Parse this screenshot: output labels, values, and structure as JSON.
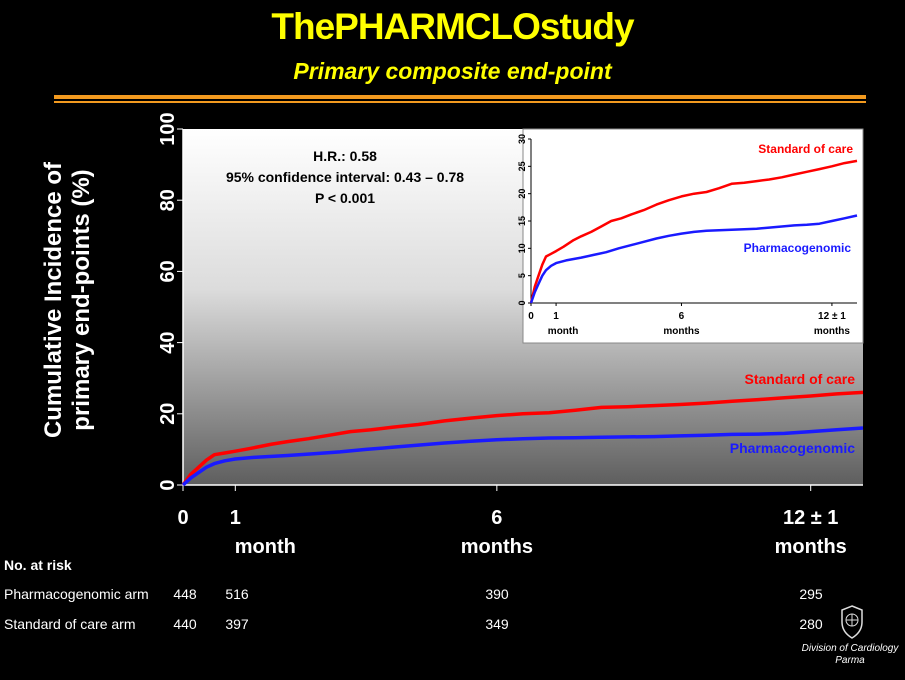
{
  "header": {
    "title": "ThePHARMCLOstudy",
    "subtitle": "Primary composite end-point"
  },
  "colors": {
    "title": "#ffff00",
    "rule": "#f29a1f",
    "standard_of_care": "#ff0000",
    "pharmacogenomic": "#1a1aff"
  },
  "chart_data": [
    {
      "type": "line",
      "ylabel": "Cumulative Incidence of primary end-points (%)",
      "ylim": [
        0,
        100
      ],
      "yticks": [
        "0",
        "20",
        "40",
        "60",
        "80",
        "100"
      ],
      "xticks": [
        {
          "value": "0",
          "unit": ""
        },
        {
          "value": "1",
          "unit": "month"
        },
        {
          "value": "6",
          "unit": "months"
        },
        {
          "value": "12 ± 1",
          "unit": "months"
        }
      ],
      "xlim": [
        0,
        13
      ],
      "annotation": [
        "H.R.: 0.58",
        "95% confidence interval: 0.43 – 0.78",
        "P < 0.001"
      ],
      "grid": false,
      "series": [
        {
          "name": "Standard of care",
          "color": "#ff0000",
          "points": [
            [
              0,
              0
            ],
            [
              0.15,
              3
            ],
            [
              0.3,
              5
            ],
            [
              0.45,
              7
            ],
            [
              0.6,
              8.5
            ],
            [
              0.8,
              9
            ],
            [
              1,
              9.5
            ],
            [
              1.3,
              10.3
            ],
            [
              1.7,
              11.5
            ],
            [
              2,
              12.2
            ],
            [
              2.4,
              13
            ],
            [
              2.8,
              14
            ],
            [
              3.2,
              15
            ],
            [
              3.6,
              15.5
            ],
            [
              4,
              16.2
            ],
            [
              4.5,
              17
            ],
            [
              5,
              18
            ],
            [
              5.5,
              18.8
            ],
            [
              6,
              19.5
            ],
            [
              6.5,
              20
            ],
            [
              7,
              20.3
            ],
            [
              7.5,
              21
            ],
            [
              8,
              21.8
            ],
            [
              8.5,
              22
            ],
            [
              9,
              22.3
            ],
            [
              9.5,
              22.6
            ],
            [
              10,
              23
            ],
            [
              10.5,
              23.5
            ],
            [
              11,
              24
            ],
            [
              11.5,
              24.5
            ],
            [
              12,
              25
            ],
            [
              12.5,
              25.6
            ],
            [
              13,
              26
            ]
          ]
        },
        {
          "name": "Pharmacogenomic",
          "color": "#1a1aff",
          "points": [
            [
              0,
              0
            ],
            [
              0.15,
              2
            ],
            [
              0.3,
              3.5
            ],
            [
              0.45,
              5
            ],
            [
              0.6,
              6
            ],
            [
              0.8,
              6.8
            ],
            [
              1,
              7.3
            ],
            [
              1.4,
              7.8
            ],
            [
              2,
              8.3
            ],
            [
              2.5,
              8.8
            ],
            [
              3,
              9.3
            ],
            [
              3.5,
              10
            ],
            [
              4,
              10.6
            ],
            [
              4.5,
              11.2
            ],
            [
              5,
              11.8
            ],
            [
              5.5,
              12.3
            ],
            [
              6,
              12.7
            ],
            [
              6.5,
              13
            ],
            [
              7,
              13.2
            ],
            [
              7.5,
              13.3
            ],
            [
              8,
              13.4
            ],
            [
              8.5,
              13.5
            ],
            [
              9,
              13.6
            ],
            [
              9.5,
              13.8
            ],
            [
              10,
              14
            ],
            [
              10.5,
              14.2
            ],
            [
              11,
              14.3
            ],
            [
              11.5,
              14.5
            ],
            [
              12,
              15
            ],
            [
              12.5,
              15.5
            ],
            [
              13,
              16
            ]
          ]
        }
      ]
    },
    {
      "type": "line",
      "ylim": [
        0,
        30
      ],
      "yticks": [
        "0",
        "5",
        "10",
        "15",
        "20",
        "25",
        "30"
      ],
      "xticks": [
        {
          "value": "0",
          "unit": ""
        },
        {
          "value": "1",
          "unit": "month"
        },
        {
          "value": "6",
          "unit": "months"
        },
        {
          "value": "12 ± 1",
          "unit": "months"
        }
      ],
      "xlim": [
        0,
        13
      ],
      "grid": false,
      "series": [
        {
          "name": "Standard of care",
          "color": "#ff0000",
          "same_as_main": true
        },
        {
          "name": "Pharmacogenomic",
          "color": "#1a1aff",
          "same_as_main": true
        }
      ]
    }
  ],
  "at_risk": {
    "heading": "No. at risk",
    "rows": [
      {
        "label": "Pharmacogenomic arm",
        "values": [
          "448",
          "516",
          "390",
          "295"
        ]
      },
      {
        "label": "Standard of care arm",
        "values": [
          "440",
          "397",
          "349",
          "280"
        ]
      }
    ]
  },
  "credit": {
    "line1": "Division of Cardiology",
    "line2": "Parma"
  }
}
